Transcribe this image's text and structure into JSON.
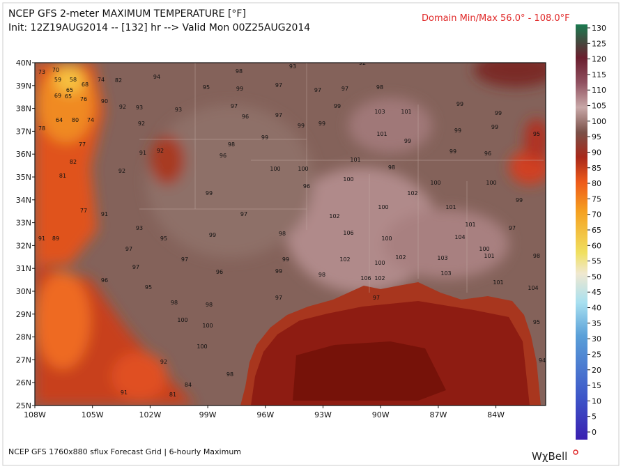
{
  "header": {
    "title": "NCEP GFS 2-meter MAXIMUM TEMPERATURE [°F]",
    "subtitle": "Init: 12Z19AUG2014 -- [132] hr --> Valid Mon 00Z25AUG2014",
    "domain_minmax": "Domain Min/Max  56.0° - 108.0°F"
  },
  "map": {
    "lon_labels": [
      "108W",
      "105W",
      "102W",
      "99W",
      "96W",
      "93W",
      "90W",
      "87W",
      "84W"
    ],
    "lat_labels": [
      "40N",
      "39N",
      "38N",
      "37N",
      "36N",
      "35N",
      "34N",
      "33N",
      "32N",
      "31N",
      "30N",
      "29N",
      "28N",
      "27N",
      "26N",
      "25N"
    ],
    "station_values": [
      73,
      70,
      59,
      58,
      68,
      74,
      82,
      94,
      98,
      93,
      92,
      65,
      69,
      65,
      76,
      90,
      92,
      93,
      95,
      99,
      97,
      97,
      97,
      98,
      64,
      80,
      74,
      92,
      93,
      97,
      96,
      97,
      99,
      103,
      101,
      99,
      99,
      78,
      77,
      98,
      99,
      99,
      99,
      101,
      99,
      99,
      99,
      95,
      82,
      91,
      92,
      96,
      100,
      100,
      101,
      98,
      99,
      96,
      81,
      92,
      99,
      96,
      100,
      102,
      100,
      100,
      99,
      77,
      91,
      93,
      97,
      102,
      100,
      101,
      101,
      97,
      91,
      89,
      95,
      99,
      98,
      106,
      100,
      104,
      100,
      97,
      97,
      99,
      102,
      100,
      102,
      103,
      101,
      98,
      97,
      96,
      99,
      98,
      106,
      102,
      103,
      101,
      104,
      96,
      95,
      98,
      98,
      97,
      97,
      100,
      100,
      95,
      100,
      92,
      98,
      91,
      81,
      84,
      94
    ]
  },
  "colorbar": {
    "ticks": [
      130,
      125,
      120,
      115,
      110,
      105,
      100,
      95,
      90,
      85,
      80,
      75,
      70,
      65,
      60,
      55,
      50,
      45,
      40,
      35,
      30,
      25,
      20,
      15,
      10,
      5,
      0
    ]
  },
  "footer": {
    "source": "NCEP GFS 1760x880 sflux Forecast Grid | 6-hourly Maximum",
    "logo": "WχBell"
  }
}
